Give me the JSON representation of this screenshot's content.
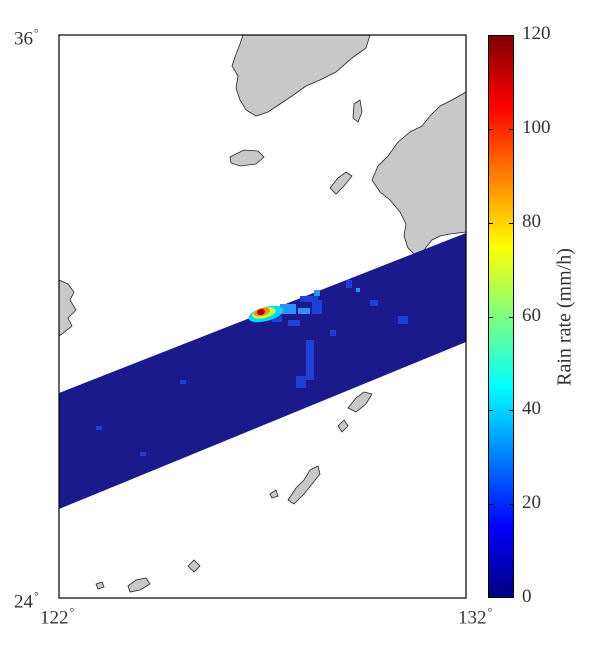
{
  "map": {
    "lat_labels": {
      "top": "36",
      "bottom": "24"
    },
    "lon_labels": {
      "left": "122",
      "right": "132"
    },
    "degree_symbol": "°",
    "lat_range": [
      24,
      36
    ],
    "lon_range": [
      122,
      132
    ],
    "land_color": "#c8c8c8",
    "ocean_color": "#ffffff",
    "swath_base_color": "#1a1a8c"
  },
  "colorbar": {
    "title": "Rain rate (mm/h)",
    "ticks": [
      "0",
      "20",
      "40",
      "60",
      "80",
      "100",
      "120"
    ],
    "range": [
      0,
      120
    ],
    "colormap": "jet",
    "colors": [
      "#00007f",
      "#0000ff",
      "#007fff",
      "#00ffff",
      "#7fff7f",
      "#ffff00",
      "#ff7f00",
      "#ff0000",
      "#7f0000"
    ]
  },
  "rain_feature": {
    "peak_rate": 120
  }
}
